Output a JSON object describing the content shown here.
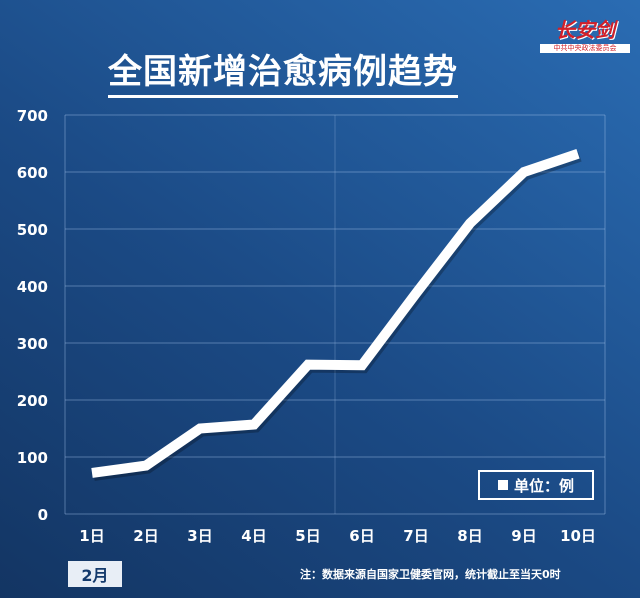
{
  "chart_data": {
    "type": "line",
    "title": "全国新增治愈病例趋势",
    "categories": [
      "1日",
      "2日",
      "3日",
      "4日",
      "5日",
      "6日",
      "7日",
      "8日",
      "9日",
      "10日"
    ],
    "values": [
      72,
      85,
      150,
      157,
      262,
      261,
      387,
      510,
      600,
      632
    ],
    "ylim": [
      0,
      700
    ],
    "yticks": [
      "0",
      "100",
      "200",
      "300",
      "400",
      "500",
      "600",
      "700"
    ],
    "grid": true,
    "line_color": "#ffffff",
    "legend": {
      "label": "单位：例",
      "placement": "bottom-right"
    },
    "month_label": "2月",
    "note": "注：数据来源自国家卫健委官网，统计截止至当天0时"
  },
  "logo": {
    "text": "长安剑",
    "subtext": "中共中央政法委员会"
  },
  "colors": {
    "background_dark": "#133563",
    "background_light": "#2a6cb3"
  }
}
